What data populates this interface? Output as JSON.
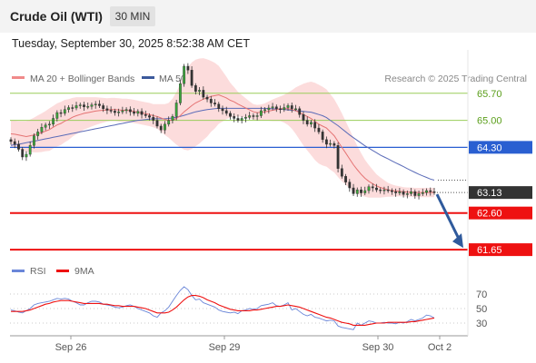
{
  "header": {
    "title": "Crude Oil (WTI)",
    "timeframe": "30 MIN"
  },
  "timestamp": "Tuesday, September 30, 2025 8:52:38 AM CET",
  "legend": {
    "ma20": "MA 20 + Bollinger Bands",
    "ma50": "MA 50",
    "credit": "Research © 2025 Trading Central"
  },
  "rsi_legend": {
    "rsi": "RSI",
    "ma9": "9MA"
  },
  "colors": {
    "resistance": "#9acd5a",
    "pivot": "#2a5fd1",
    "support": "#ee1111",
    "price": "#333333",
    "arrow": "#2f5a9c",
    "ma20": "#e57373",
    "ma50": "#5a6bb8",
    "band": "#fcd6d6"
  },
  "chart_data": [
    {
      "type": "candlestick",
      "title": "Crude Oil (WTI)",
      "timeframe": "30 MIN",
      "x_ticks": [
        "Sep 26",
        "Sep 29",
        "Sep 30",
        "Oct 2"
      ],
      "ylim": [
        61.3,
        66.8
      ],
      "levels": [
        {
          "label": "65.70",
          "value": 65.7,
          "kind": "resistance"
        },
        {
          "label": "65.00",
          "value": 65.0,
          "kind": "resistance"
        },
        {
          "label": "64.30",
          "value": 64.3,
          "kind": "pivot"
        },
        {
          "label": "63.13",
          "value": 63.13,
          "kind": "last-price"
        },
        {
          "label": "62.60",
          "value": 62.6,
          "kind": "support"
        },
        {
          "label": "61.65",
          "value": 61.65,
          "kind": "support"
        }
      ],
      "close": [
        64.45,
        64.38,
        64.25,
        64.05,
        64.12,
        64.35,
        64.6,
        64.7,
        64.82,
        64.88,
        64.9,
        65.05,
        65.2,
        65.18,
        65.28,
        65.33,
        65.32,
        65.38,
        65.4,
        65.35,
        65.36,
        65.4,
        65.42,
        65.38,
        65.3,
        65.26,
        65.24,
        65.2,
        65.22,
        65.25,
        65.28,
        65.22,
        65.18,
        65.23,
        65.15,
        65.12,
        65.08,
        65.0,
        64.85,
        64.75,
        64.9,
        65.0,
        65.1,
        65.45,
        65.95,
        66.4,
        66.3,
        65.9,
        65.75,
        65.78,
        65.6,
        65.55,
        65.45,
        65.42,
        65.3,
        65.25,
        65.18,
        65.1,
        65.05,
        65.0,
        65.05,
        65.08,
        65.12,
        65.1,
        65.12,
        65.25,
        65.28,
        65.32,
        65.35,
        65.3,
        65.28,
        65.33,
        65.38,
        65.3,
        65.3,
        65.15,
        65.0,
        64.9,
        64.95,
        64.8,
        64.7,
        64.5,
        64.38,
        64.4,
        64.35,
        63.75,
        63.55,
        63.4,
        63.25,
        63.1,
        63.2,
        63.12,
        63.18,
        63.28,
        63.25,
        63.2,
        63.18,
        63.2,
        63.18,
        63.15,
        63.12,
        63.15,
        63.08,
        63.1,
        63.15,
        63.05,
        63.1,
        63.13,
        63.18,
        63.15,
        63.13
      ],
      "ma20": [
        64.65,
        64.64,
        64.62,
        64.6,
        64.58,
        64.6,
        64.62,
        64.65,
        64.68,
        64.72,
        64.76,
        64.82,
        64.88,
        64.92,
        64.98,
        65.02,
        65.08,
        65.12,
        65.15,
        65.18,
        65.2,
        65.22,
        65.24,
        65.25,
        65.26,
        65.27,
        65.28,
        65.28,
        65.27,
        65.26,
        65.26,
        65.25,
        65.23,
        65.21,
        65.19,
        65.17,
        65.15,
        65.12,
        65.1,
        65.06,
        65.02,
        65.0,
        65.01,
        65.05,
        65.12,
        65.22,
        65.3,
        65.38,
        65.45,
        65.5,
        65.55,
        65.58,
        65.62,
        65.64,
        65.66,
        65.62,
        65.58,
        65.52,
        65.48,
        65.42,
        65.37,
        65.32,
        65.27,
        65.22,
        65.2,
        65.21,
        65.22,
        65.24,
        65.26,
        65.28,
        65.3,
        65.3,
        65.3,
        65.28,
        65.25,
        65.2,
        65.15,
        65.1,
        65.05,
        64.97,
        64.9,
        64.85,
        64.8,
        64.7,
        64.6,
        64.45,
        64.3,
        64.15,
        64.0,
        63.85,
        63.72,
        63.6,
        63.5,
        63.42,
        63.36,
        63.3,
        63.26,
        63.23,
        63.2,
        63.18,
        63.17,
        63.16,
        63.15,
        63.14,
        63.14,
        63.13,
        63.13,
        63.13,
        63.13,
        63.13,
        63.13
      ],
      "ma50": [
        64.35,
        64.37,
        64.38,
        64.4,
        64.42,
        64.44,
        64.46,
        64.48,
        64.5,
        64.52,
        64.54,
        64.56,
        64.58,
        64.6,
        64.62,
        64.64,
        64.66,
        64.68,
        64.7,
        64.72,
        64.74,
        64.76,
        64.78,
        64.8,
        64.82,
        64.84,
        64.86,
        64.88,
        64.9,
        64.92,
        64.94,
        64.96,
        64.98,
        65.0,
        65.01,
        65.02,
        65.03,
        65.04,
        65.04,
        65.04,
        65.04,
        65.05,
        65.06,
        65.08,
        65.1,
        65.13,
        65.16,
        65.19,
        65.22,
        65.24,
        65.26,
        65.28,
        65.29,
        65.3,
        65.31,
        65.31,
        65.31,
        65.31,
        65.31,
        65.31,
        65.31,
        65.31,
        65.31,
        65.31,
        65.31,
        65.31,
        65.31,
        65.3,
        65.3,
        65.29,
        65.29,
        65.28,
        65.27,
        65.26,
        65.25,
        65.24,
        65.23,
        65.22,
        65.21,
        65.18,
        65.15,
        65.12,
        65.07,
        65.0,
        64.93,
        64.86,
        64.78,
        64.7,
        64.62,
        64.55,
        64.48,
        64.41,
        64.34,
        64.28,
        64.22,
        64.16,
        64.1,
        64.05,
        64.0,
        63.95,
        63.9,
        63.85,
        63.8,
        63.75,
        63.7,
        63.65,
        63.6,
        63.56,
        63.52,
        63.48,
        63.45
      ],
      "bb_width": [
        0.35,
        0.35,
        0.36,
        0.38,
        0.4,
        0.42,
        0.45,
        0.48,
        0.5,
        0.52,
        0.55,
        0.55,
        0.56,
        0.56,
        0.55,
        0.53,
        0.5,
        0.48,
        0.45,
        0.42,
        0.4,
        0.38,
        0.36,
        0.34,
        0.32,
        0.3,
        0.3,
        0.3,
        0.3,
        0.3,
        0.3,
        0.3,
        0.3,
        0.3,
        0.3,
        0.3,
        0.3,
        0.3,
        0.32,
        0.36,
        0.4,
        0.45,
        0.55,
        0.68,
        0.82,
        0.98,
        1.08,
        1.12,
        1.12,
        1.1,
        1.06,
        1.0,
        0.92,
        0.85,
        0.75,
        0.65,
        0.55,
        0.45,
        0.38,
        0.32,
        0.28,
        0.25,
        0.22,
        0.2,
        0.2,
        0.2,
        0.22,
        0.25,
        0.28,
        0.3,
        0.32,
        0.36,
        0.42,
        0.5,
        0.6,
        0.7,
        0.8,
        0.88,
        0.95,
        1.0,
        1.02,
        1.02,
        1.0,
        0.98,
        0.95,
        0.92,
        0.88,
        0.82,
        0.76,
        0.7,
        0.62,
        0.55,
        0.48,
        0.42,
        0.36,
        0.3,
        0.26,
        0.22,
        0.18,
        0.16,
        0.14,
        0.13,
        0.12,
        0.12,
        0.12,
        0.12,
        0.12,
        0.12,
        0.12,
        0.12,
        0.12
      ]
    },
    {
      "type": "line",
      "title": "RSI",
      "y_ticks": [
        70,
        50,
        30
      ],
      "ylim": [
        15,
        85
      ],
      "series": [
        {
          "name": "RSI",
          "values": [
            48,
            47,
            45,
            44,
            47,
            50,
            55,
            57,
            58,
            59,
            60,
            62,
            64,
            63,
            64,
            63,
            60,
            58,
            55,
            55,
            58,
            60,
            60,
            59,
            56,
            55,
            54,
            52,
            51,
            52,
            54,
            55,
            53,
            50,
            48,
            46,
            44,
            40,
            38,
            44,
            47,
            52,
            60,
            68,
            75,
            80,
            76,
            68,
            62,
            63,
            58,
            56,
            54,
            52,
            48,
            46,
            45,
            44,
            45,
            43,
            47,
            48,
            50,
            49,
            50,
            54,
            55,
            56,
            58,
            54,
            53,
            55,
            58,
            48,
            50,
            46,
            42,
            40,
            42,
            38,
            37,
            35,
            33,
            34,
            33,
            26,
            24,
            23,
            22,
            21,
            30,
            27,
            30,
            33,
            32,
            30,
            30,
            31,
            30,
            30,
            29,
            31,
            30,
            32,
            35,
            33,
            35,
            37,
            41,
            40,
            37
          ]
        },
        {
          "name": "9MA",
          "values": [
            46,
            46,
            46,
            46,
            47,
            48,
            50,
            52,
            54,
            56,
            57,
            59,
            60,
            61,
            61,
            61,
            60,
            59,
            58,
            57,
            57,
            57,
            57,
            57,
            56,
            56,
            55,
            54,
            54,
            53,
            53,
            53,
            53,
            52,
            51,
            50,
            48,
            46,
            44,
            44,
            44,
            45,
            48,
            52,
            57,
            62,
            66,
            68,
            68,
            67,
            65,
            62,
            60,
            58,
            55,
            53,
            51,
            49,
            48,
            47,
            47,
            47,
            47,
            48,
            48,
            49,
            50,
            51,
            52,
            53,
            53,
            54,
            55,
            54,
            53,
            52,
            50,
            48,
            46,
            44,
            42,
            40,
            38,
            37,
            35,
            33,
            31,
            30,
            29,
            27,
            27,
            27,
            27,
            28,
            29,
            30,
            30,
            30,
            31,
            31,
            31,
            31,
            31,
            31,
            32,
            32,
            33,
            34,
            35,
            36,
            37
          ]
        }
      ]
    }
  ]
}
